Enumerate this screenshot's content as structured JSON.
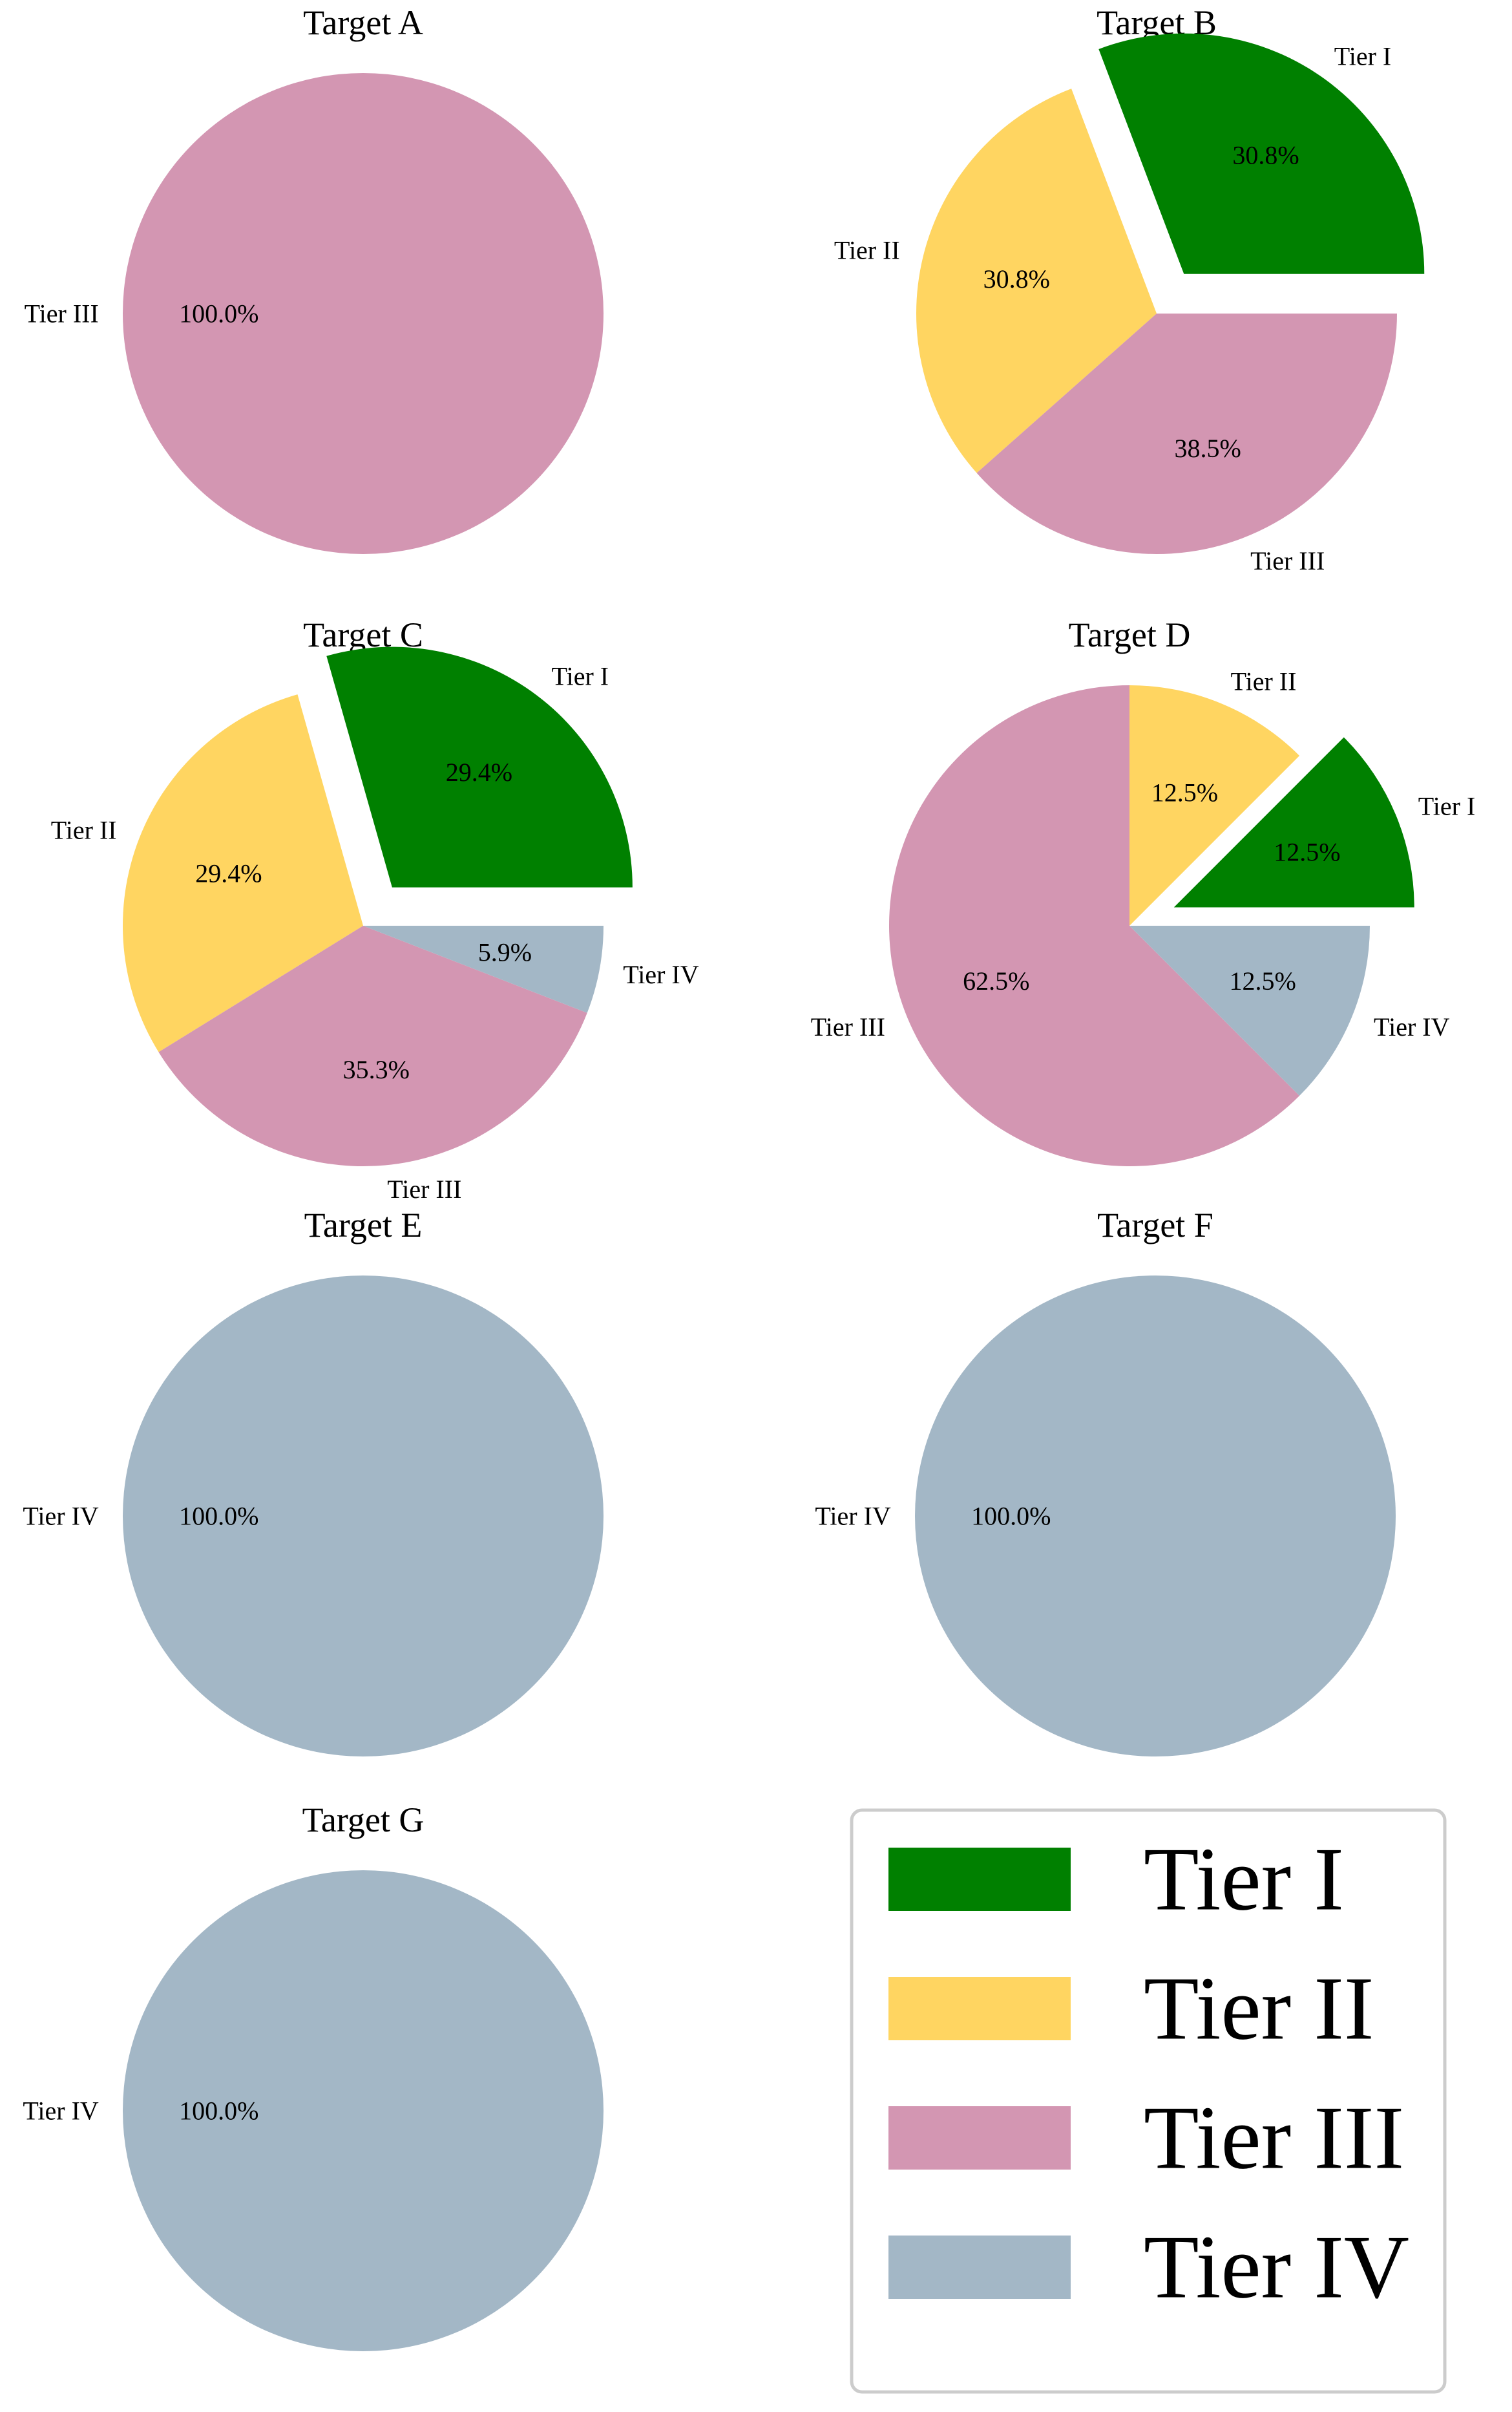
{
  "colors": {
    "Tier I": "#008000",
    "Tier II": "#FFD561",
    "Tier III": "#D396B2",
    "Tier IV": "#A3B7C6"
  },
  "legend": {
    "placement": "bottom-right",
    "items": [
      "Tier I",
      "Tier II",
      "Tier III",
      "Tier IV"
    ]
  },
  "chart_data": [
    {
      "type": "pie",
      "title": "Target A",
      "slices": [
        {
          "label": "Tier III",
          "value": 100.0,
          "pct_label": "100.0%",
          "exploded": false
        }
      ]
    },
    {
      "type": "pie",
      "title": "Target B",
      "slices": [
        {
          "label": "Tier I",
          "value": 30.8,
          "pct_label": "30.8%",
          "exploded": true
        },
        {
          "label": "Tier II",
          "value": 30.8,
          "pct_label": "30.8%",
          "exploded": false
        },
        {
          "label": "Tier III",
          "value": 38.5,
          "pct_label": "38.5%",
          "exploded": false
        }
      ]
    },
    {
      "type": "pie",
      "title": "Target C",
      "slices": [
        {
          "label": "Tier I",
          "value": 29.4,
          "pct_label": "29.4%",
          "exploded": true
        },
        {
          "label": "Tier II",
          "value": 29.4,
          "pct_label": "29.4%",
          "exploded": false
        },
        {
          "label": "Tier III",
          "value": 35.3,
          "pct_label": "35.3%",
          "exploded": false
        },
        {
          "label": "Tier IV",
          "value": 5.9,
          "pct_label": "5.9%",
          "exploded": false
        }
      ]
    },
    {
      "type": "pie",
      "title": "Target D",
      "slices": [
        {
          "label": "Tier I",
          "value": 12.5,
          "pct_label": "12.5%",
          "exploded": true
        },
        {
          "label": "Tier II",
          "value": 12.5,
          "pct_label": "12.5%",
          "exploded": false
        },
        {
          "label": "Tier III",
          "value": 62.5,
          "pct_label": "62.5%",
          "exploded": false
        },
        {
          "label": "Tier IV",
          "value": 12.5,
          "pct_label": "12.5%",
          "exploded": false
        }
      ]
    },
    {
      "type": "pie",
      "title": "Target E",
      "slices": [
        {
          "label": "Tier IV",
          "value": 100.0,
          "pct_label": "100.0%",
          "exploded": false
        }
      ]
    },
    {
      "type": "pie",
      "title": "Target F",
      "slices": [
        {
          "label": "Tier IV",
          "value": 100.0,
          "pct_label": "100.0%",
          "exploded": false
        }
      ]
    },
    {
      "type": "pie",
      "title": "Target G",
      "slices": [
        {
          "label": "Tier IV",
          "value": 100.0,
          "pct_label": "100.0%",
          "exploded": false
        }
      ]
    }
  ]
}
